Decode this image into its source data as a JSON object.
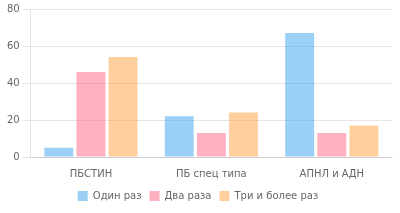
{
  "chart_data": {
    "type": "bar",
    "categories": [
      "ПБСТИН",
      "ПБ спец типа",
      "АПНЛ и АДН"
    ],
    "series": [
      {
        "name": "Один раз",
        "values": [
          5,
          22,
          67
        ]
      },
      {
        "name": "Два раза",
        "values": [
          46,
          13,
          13
        ]
      },
      {
        "name": "Три и более раз",
        "values": [
          54,
          24,
          17
        ]
      }
    ],
    "ylim": [
      0,
      80
    ],
    "yticks": [
      0,
      20,
      40,
      60,
      80
    ],
    "grid": true,
    "legend": "bottom"
  }
}
